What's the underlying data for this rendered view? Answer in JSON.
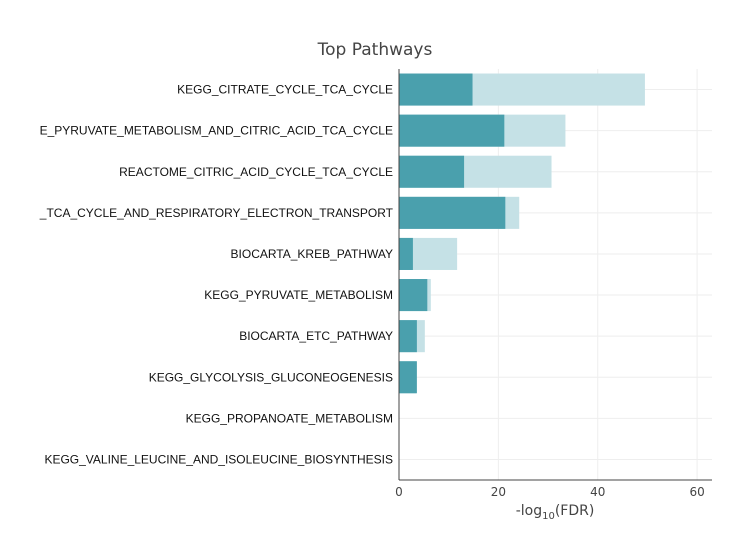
{
  "chart_data": {
    "type": "bar",
    "orientation": "horizontal",
    "barmode": "overlay",
    "title": "Top Pathways",
    "xlabel_main": "-log",
    "xlabel_sub": "10",
    "xlabel_tail": "(FDR)",
    "xlim": [
      0,
      63
    ],
    "xticks": [
      "0",
      "20",
      "40",
      "60"
    ],
    "grid": true,
    "categories": [
      "KEGG_CITRATE_CYCLE_TCA_CYCLE",
      "E_PYRUVATE_METABOLISM_AND_CITRIC_ACID_TCA_CYCLE",
      "REACTOME_CITRIC_ACID_CYCLE_TCA_CYCLE",
      "_TCA_CYCLE_AND_RESPIRATORY_ELECTRON_TRANSPORT",
      "BIOCARTA_KREB_PATHWAY",
      "KEGG_PYRUVATE_METABOLISM",
      "BIOCARTA_ETC_PATHWAY",
      "KEGG_GLYCOLYSIS_GLUCONEOGENESIS",
      "KEGG_PROPANOATE_METABOLISM",
      "KEGG_VALINE_LEUCINE_AND_ISOLEUCINE_BIOSYNTHESIS"
    ],
    "series": [
      {
        "color": "#c5e1e6",
        "values": [
          49.5,
          33.5,
          30.7,
          24.2,
          11.7,
          6.4,
          5.2,
          3.4,
          0,
          0
        ]
      },
      {
        "color": "#4aa0ad",
        "values": [
          14.8,
          21.2,
          13.1,
          21.4,
          2.8,
          5.7,
          3.6,
          3.6,
          0,
          0
        ]
      }
    ]
  }
}
